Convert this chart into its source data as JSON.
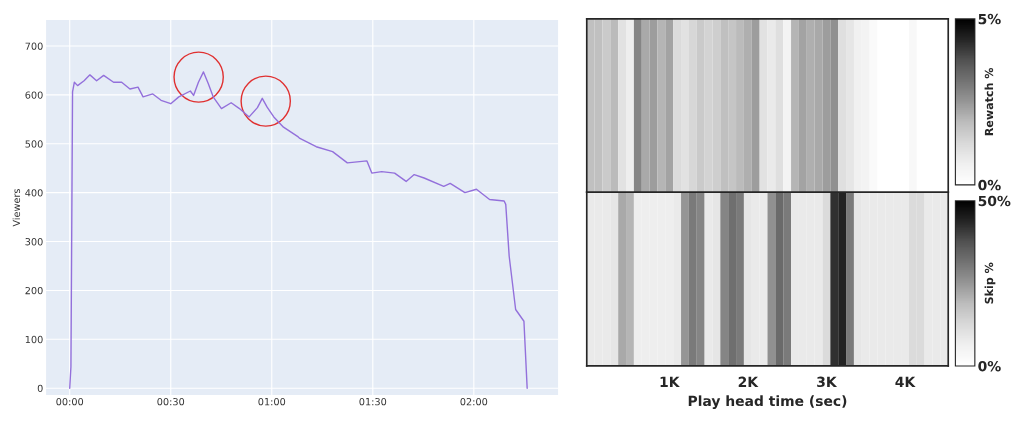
{
  "chart_data": [
    {
      "type": "line",
      "ylabel": "Viewers",
      "xlim": [
        -0.117,
        2.417
      ],
      "ylim": [
        -14,
        753
      ],
      "xticks": [
        {
          "value": 0,
          "label": "00:00"
        },
        {
          "value": 0.5,
          "label": "00:30"
        },
        {
          "value": 1,
          "label": "01:00"
        },
        {
          "value": 1.5,
          "label": "01:30"
        },
        {
          "value": 2,
          "label": "02:00"
        }
      ],
      "yticks": [
        0,
        100,
        200,
        300,
        400,
        500,
        600,
        700
      ],
      "grid": true,
      "series": [
        {
          "color": "#9370db",
          "x": [
            0,
            0.006,
            0.014,
            0.023,
            0.039,
            0.071,
            0.1,
            0.133,
            0.168,
            0.217,
            0.257,
            0.298,
            0.338,
            0.363,
            0.411,
            0.452,
            0.5,
            0.54,
            0.597,
            0.613,
            0.637,
            0.662,
            0.686,
            0.71,
            0.751,
            0.799,
            0.84,
            0.888,
            0.929,
            0.953,
            0.977,
            1.01,
            1.058,
            1.131,
            1.139,
            1.22,
            1.301,
            1.374,
            1.471,
            1.495,
            1.544,
            1.608,
            1.665,
            1.705,
            1.754,
            1.851,
            1.883,
            1.956,
            2.013,
            2.078,
            2.15,
            2.158,
            2.175,
            2.207,
            2.248,
            2.264
          ],
          "values": [
            0,
            44,
            606,
            626,
            619,
            629,
            641,
            629,
            640,
            626,
            626,
            612,
            616,
            596,
            602,
            589,
            582,
            596,
            608,
            599,
            626,
            647,
            623,
            596,
            572,
            584,
            572,
            555,
            574,
            593,
            575,
            555,
            534,
            514,
            511,
            494,
            484,
            461,
            465,
            440,
            443,
            440,
            423,
            437,
            430,
            413,
            419,
            400,
            407,
            386,
            383,
            376,
            270,
            161,
            137,
            0
          ]
        }
      ]
    },
    {
      "type": "heatmap",
      "clabel": "Rewatch %",
      "clim": [
        0,
        5
      ],
      "cticks": [
        {
          "value": 0,
          "label": "0%"
        },
        {
          "value": 5,
          "label": "5%"
        }
      ],
      "categories": [
        null,
        null,
        null,
        null,
        null,
        null,
        null,
        null,
        null,
        null,
        null,
        null,
        null,
        null,
        null,
        null,
        null,
        null,
        null,
        null,
        null,
        null,
        null,
        null,
        null,
        null,
        null,
        null,
        null,
        null,
        null,
        null,
        null,
        null,
        null,
        null,
        null,
        null,
        null,
        null,
        null,
        null,
        null,
        null,
        null,
        null
      ],
      "y_categories": [
        null
      ],
      "cells": [
        [
          1.8,
          1.8,
          1.6,
          1.9,
          1.0,
          0.7,
          2.8,
          2.2,
          2.4,
          2.0,
          2.3,
          1.2,
          1.0,
          1.3,
          1.6,
          1.4,
          1.5,
          1.8,
          1.7,
          1.9,
          2.1,
          2.4,
          1.0,
          0.8,
          1.1,
          0.5,
          2.0,
          2.3,
          2.1,
          2.2,
          2.4,
          2.6,
          1.1,
          0.9,
          0.6,
          0.5,
          0.2,
          0,
          0,
          0,
          0,
          0.3,
          0,
          0,
          0,
          0
        ]
      ]
    },
    {
      "type": "heatmap",
      "clabel": "Skip %",
      "clim": [
        0,
        50
      ],
      "cticks": [
        {
          "value": 0,
          "label": "0%"
        },
        {
          "value": 50,
          "label": "50%"
        }
      ],
      "xlabel": "Play head time (sec)",
      "categories": [
        null,
        null,
        null,
        null,
        null,
        null,
        null,
        null,
        null,
        null,
        "1K",
        null,
        null,
        null,
        null,
        null,
        null,
        null,
        null,
        null,
        "2K",
        null,
        null,
        null,
        null,
        null,
        null,
        null,
        null,
        null,
        "3K",
        null,
        null,
        null,
        null,
        null,
        null,
        null,
        null,
        null,
        "4K",
        null,
        null,
        null,
        null,
        null
      ],
      "y_categories": [
        null
      ],
      "cells": [
        [
          8,
          8,
          8,
          9,
          22,
          20,
          7,
          7,
          7,
          7,
          7,
          8,
          25,
          30,
          28,
          8,
          9,
          28,
          32,
          30,
          9,
          8,
          8,
          26,
          33,
          30,
          8,
          8,
          8,
          8,
          12,
          42,
          44,
          30,
          9,
          8,
          8,
          8,
          8,
          8,
          8,
          12,
          12,
          8,
          8,
          8
        ]
      ]
    }
  ]
}
